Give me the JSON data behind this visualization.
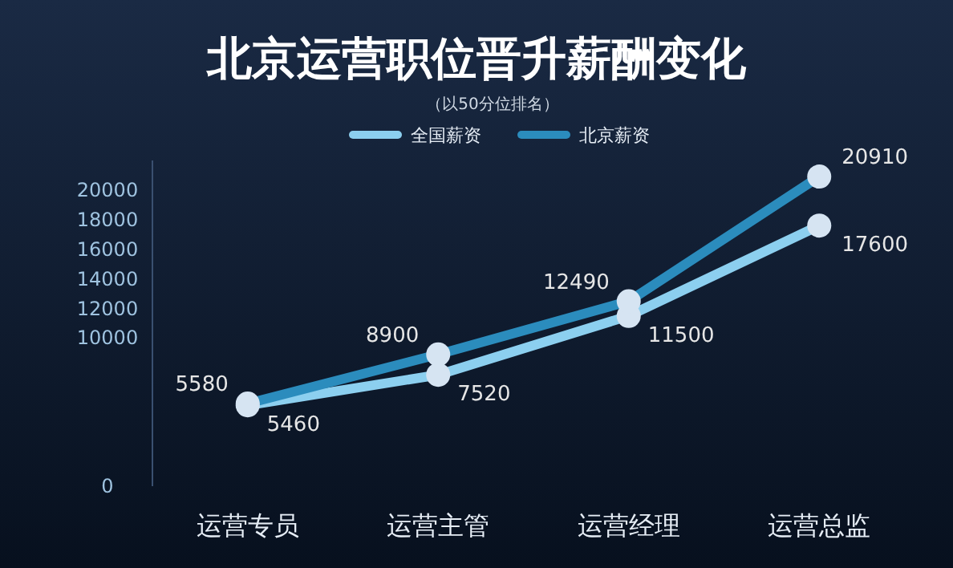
{
  "chart_data": {
    "type": "line",
    "title": "北京运营职位晋升薪酬变化",
    "subtitle": "（以50分位排名）",
    "categories": [
      "运营专员",
      "运营主管",
      "运营经理",
      "运营总监"
    ],
    "series": [
      {
        "name": "全国薪资",
        "color": "#8ccfef",
        "values": [
          5460,
          7520,
          11500,
          17600
        ]
      },
      {
        "name": "北京薪资",
        "color": "#2b8cbd",
        "values": [
          5580,
          8900,
          12490,
          20910
        ]
      }
    ],
    "ylim": [
      0,
      22000
    ],
    "yticks": [
      0,
      10000,
      12000,
      14000,
      16000,
      18000,
      20000
    ],
    "data_labels": true,
    "legend": "top",
    "marker": "circle",
    "line_style": "solid",
    "grid": false
  }
}
